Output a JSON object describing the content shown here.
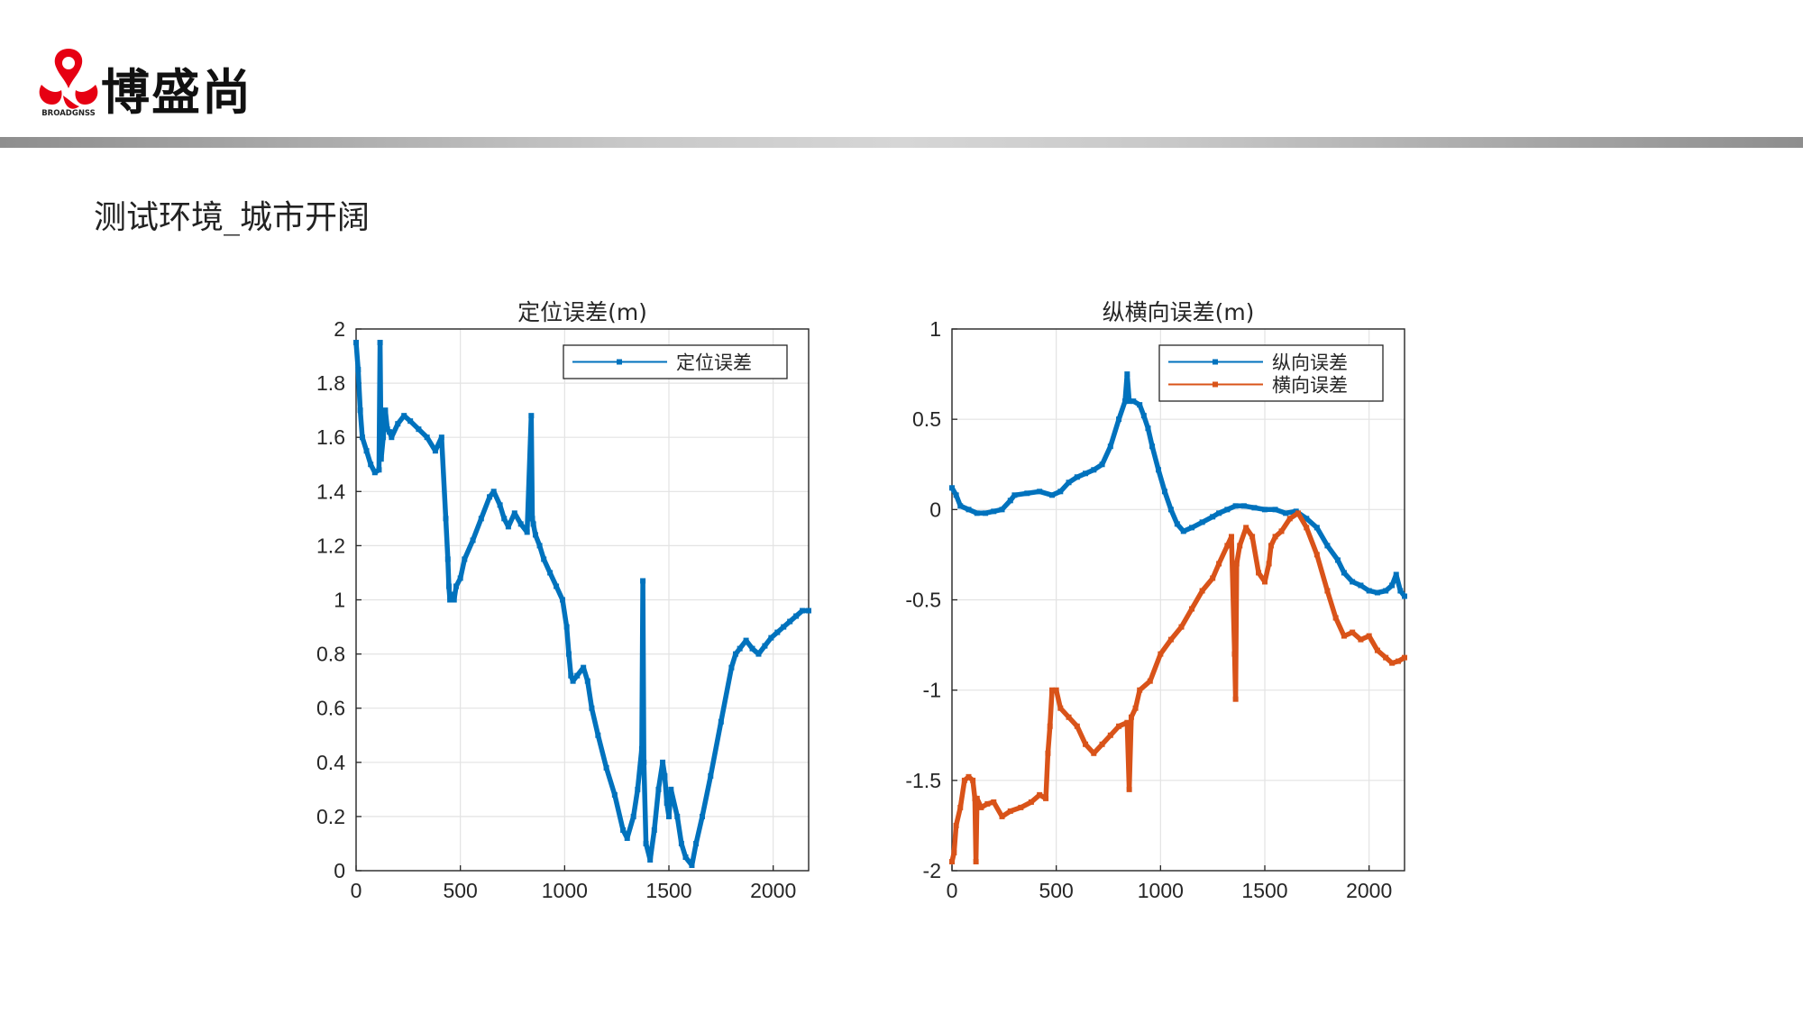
{
  "header": {
    "brand_name": "博盛尚",
    "logo_caption": "BROADGNSS",
    "logo_color": "#e60012"
  },
  "page": {
    "subtitle": "测试环境_城市开阔"
  },
  "chart_data": [
    {
      "type": "line",
      "title": "定位误差(m)",
      "xlabel": "",
      "ylabel": "",
      "xlim": [
        0,
        2170
      ],
      "ylim": [
        0,
        2
      ],
      "xticks": [
        0,
        500,
        1000,
        1500,
        2000
      ],
      "xtick_labels": [
        "0",
        "500",
        "1000",
        "1500",
        "2000"
      ],
      "yticks": [
        0,
        0.2,
        0.4,
        0.6,
        0.8,
        1,
        1.2,
        1.4,
        1.6,
        1.8,
        2
      ],
      "ytick_labels": [
        "0",
        "0.2",
        "0.4",
        "0.6",
        "0.8",
        "1",
        "1.2",
        "1.4",
        "1.6",
        "1.8",
        "2"
      ],
      "grid": true,
      "legend_position": "top-right",
      "series": [
        {
          "name": "定位误差",
          "color": "#0072bd",
          "x": [
            0,
            10,
            20,
            30,
            50,
            70,
            90,
            110,
            115,
            120,
            130,
            140,
            150,
            160,
            170,
            200,
            230,
            260,
            300,
            340,
            380,
            410,
            430,
            440,
            445,
            450,
            460,
            470,
            480,
            500,
            520,
            560,
            600,
            640,
            660,
            690,
            710,
            730,
            760,
            790,
            820,
            840,
            845,
            850,
            860,
            880,
            900,
            930,
            960,
            990,
            1010,
            1020,
            1030,
            1040,
            1060,
            1090,
            1110,
            1130,
            1160,
            1200,
            1240,
            1280,
            1300,
            1330,
            1350,
            1370,
            1375,
            1380,
            1390,
            1410,
            1430,
            1450,
            1470,
            1480,
            1490,
            1500,
            1510,
            1540,
            1560,
            1580,
            1610,
            1630,
            1660,
            1700,
            1750,
            1800,
            1820,
            1840,
            1870,
            1900,
            1930,
            1960,
            1990,
            2020,
            2050,
            2080,
            2110,
            2140,
            2170
          ],
          "y": [
            1.95,
            1.85,
            1.7,
            1.6,
            1.55,
            1.5,
            1.47,
            1.48,
            1.95,
            1.52,
            1.6,
            1.7,
            1.63,
            1.62,
            1.6,
            1.65,
            1.68,
            1.66,
            1.63,
            1.6,
            1.55,
            1.6,
            1.3,
            1.15,
            1.05,
            1.0,
            1.02,
            1.0,
            1.05,
            1.08,
            1.15,
            1.22,
            1.3,
            1.38,
            1.4,
            1.35,
            1.3,
            1.27,
            1.32,
            1.28,
            1.25,
            1.68,
            1.3,
            1.28,
            1.24,
            1.2,
            1.15,
            1.1,
            1.05,
            1.0,
            0.9,
            0.8,
            0.72,
            0.7,
            0.72,
            0.75,
            0.7,
            0.6,
            0.5,
            0.38,
            0.28,
            0.15,
            0.12,
            0.2,
            0.3,
            0.45,
            1.07,
            0.4,
            0.1,
            0.04,
            0.15,
            0.3,
            0.4,
            0.35,
            0.25,
            0.2,
            0.3,
            0.2,
            0.1,
            0.05,
            0.02,
            0.1,
            0.2,
            0.35,
            0.55,
            0.75,
            0.8,
            0.82,
            0.85,
            0.82,
            0.8,
            0.83,
            0.86,
            0.88,
            0.9,
            0.92,
            0.94,
            0.96,
            0.96
          ]
        }
      ]
    },
    {
      "type": "line",
      "title": "纵横向误差(m)",
      "xlabel": "",
      "ylabel": "",
      "xlim": [
        0,
        2170
      ],
      "ylim": [
        -2,
        1
      ],
      "xticks": [
        0,
        500,
        1000,
        1500,
        2000
      ],
      "xtick_labels": [
        "0",
        "500",
        "1000",
        "1500",
        "2000"
      ],
      "yticks": [
        -2,
        -1.5,
        -1,
        -0.5,
        0,
        0.5,
        1
      ],
      "ytick_labels": [
        "-2",
        "-1.5",
        "-1",
        "-0.5",
        "0",
        "0.5",
        "1"
      ],
      "grid": true,
      "legend_position": "top-right",
      "series": [
        {
          "name": "纵向误差",
          "color": "#0072bd",
          "x": [
            0,
            20,
            40,
            80,
            120,
            160,
            200,
            240,
            280,
            300,
            360,
            420,
            480,
            520,
            560,
            600,
            640,
            680,
            720,
            760,
            800,
            830,
            840,
            850,
            870,
            900,
            920,
            940,
            960,
            990,
            1020,
            1050,
            1080,
            1110,
            1150,
            1200,
            1250,
            1280,
            1320,
            1360,
            1400,
            1450,
            1500,
            1550,
            1600,
            1650,
            1700,
            1750,
            1800,
            1850,
            1880,
            1920,
            1960,
            2000,
            2040,
            2080,
            2110,
            2130,
            2150,
            2170
          ],
          "y": [
            0.12,
            0.08,
            0.02,
            0.0,
            -0.02,
            -0.02,
            -0.01,
            0.0,
            0.05,
            0.08,
            0.09,
            0.1,
            0.08,
            0.1,
            0.15,
            0.18,
            0.2,
            0.22,
            0.25,
            0.35,
            0.5,
            0.6,
            0.75,
            0.6,
            0.6,
            0.58,
            0.52,
            0.45,
            0.35,
            0.22,
            0.1,
            0.0,
            -0.08,
            -0.12,
            -0.1,
            -0.07,
            -0.04,
            -0.02,
            0.0,
            0.02,
            0.02,
            0.01,
            0.0,
            0.0,
            -0.02,
            -0.01,
            -0.05,
            -0.1,
            -0.2,
            -0.28,
            -0.35,
            -0.4,
            -0.42,
            -0.45,
            -0.46,
            -0.45,
            -0.42,
            -0.36,
            -0.45,
            -0.48
          ]
        },
        {
          "name": "横向误差",
          "color": "#d95319",
          "x": [
            0,
            10,
            20,
            40,
            60,
            80,
            100,
            110,
            115,
            120,
            140,
            170,
            200,
            240,
            280,
            330,
            380,
            420,
            450,
            460,
            470,
            480,
            500,
            520,
            560,
            600,
            640,
            680,
            720,
            760,
            800,
            840,
            850,
            860,
            880,
            900,
            950,
            1000,
            1050,
            1100,
            1150,
            1200,
            1250,
            1280,
            1320,
            1340,
            1355,
            1360,
            1365,
            1380,
            1410,
            1440,
            1470,
            1500,
            1520,
            1530,
            1550,
            1580,
            1620,
            1660,
            1700,
            1750,
            1800,
            1840,
            1880,
            1920,
            1960,
            2000,
            2040,
            2080,
            2110,
            2140,
            2170
          ],
          "y": [
            -1.95,
            -1.9,
            -1.75,
            -1.65,
            -1.5,
            -1.48,
            -1.5,
            -1.6,
            -1.95,
            -1.6,
            -1.65,
            -1.63,
            -1.62,
            -1.7,
            -1.67,
            -1.65,
            -1.62,
            -1.58,
            -1.6,
            -1.35,
            -1.2,
            -1.0,
            -1.0,
            -1.1,
            -1.15,
            -1.2,
            -1.3,
            -1.35,
            -1.3,
            -1.25,
            -1.2,
            -1.18,
            -1.55,
            -1.15,
            -1.1,
            -1.0,
            -0.95,
            -0.8,
            -0.72,
            -0.65,
            -0.55,
            -0.45,
            -0.38,
            -0.3,
            -0.2,
            -0.15,
            -0.8,
            -1.05,
            -0.3,
            -0.2,
            -0.1,
            -0.15,
            -0.35,
            -0.4,
            -0.3,
            -0.2,
            -0.15,
            -0.12,
            -0.05,
            -0.02,
            -0.1,
            -0.25,
            -0.45,
            -0.6,
            -0.7,
            -0.68,
            -0.72,
            -0.7,
            -0.78,
            -0.82,
            -0.85,
            -0.84,
            -0.82
          ]
        }
      ]
    }
  ]
}
